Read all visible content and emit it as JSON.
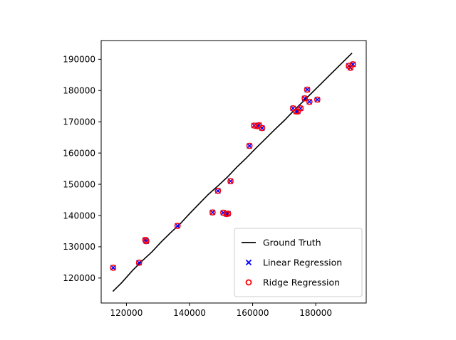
{
  "chart_data": {
    "type": "scatter",
    "title": "",
    "xlabel": "",
    "ylabel": "",
    "xlim": [
      112000,
      196000
    ],
    "ylim": [
      112000,
      196000
    ],
    "x_ticks": [
      120000,
      140000,
      160000,
      180000
    ],
    "y_ticks": [
      120000,
      130000,
      140000,
      150000,
      160000,
      170000,
      180000,
      190000
    ],
    "x_tick_labels": [
      "120000",
      "140000",
      "160000",
      "180000"
    ],
    "y_tick_labels": [
      "120000",
      "130000",
      "140000",
      "150000",
      "160000",
      "170000",
      "180000",
      "190000"
    ],
    "grid": false,
    "legend_position": "lower-right",
    "ground_truth_line": {
      "name": "Ground Truth",
      "color": "#000000",
      "points": [
        [
          115700,
          115700
        ],
        [
          118500,
          118500
        ],
        [
          122000,
          122500
        ],
        [
          125000,
          125500
        ],
        [
          128000,
          128300
        ],
        [
          131000,
          131500
        ],
        [
          134000,
          134500
        ],
        [
          137000,
          137300
        ],
        [
          140000,
          140600
        ],
        [
          143000,
          143700
        ],
        [
          146000,
          146800
        ],
        [
          149000,
          149500
        ],
        [
          152000,
          152300
        ],
        [
          155000,
          155500
        ],
        [
          158000,
          158400
        ],
        [
          161000,
          161500
        ],
        [
          164000,
          164500
        ],
        [
          167000,
          167500
        ],
        [
          170000,
          170400
        ],
        [
          173000,
          173500
        ],
        [
          176000,
          176500
        ],
        [
          179000,
          179500
        ],
        [
          182000,
          182500
        ],
        [
          185000,
          185500
        ],
        [
          188000,
          188500
        ],
        [
          191500,
          192000
        ]
      ]
    },
    "series": [
      {
        "name": "Linear Regression",
        "marker": "x",
        "color": "#0000ff",
        "points": [
          [
            115800,
            123300
          ],
          [
            124000,
            124900
          ],
          [
            126000,
            132200
          ],
          [
            126300,
            131800
          ],
          [
            136200,
            136700
          ],
          [
            147300,
            141000
          ],
          [
            149000,
            147900
          ],
          [
            150700,
            140900
          ],
          [
            151700,
            140500
          ],
          [
            152200,
            140600
          ],
          [
            153000,
            151000
          ],
          [
            159000,
            162300
          ],
          [
            160500,
            168800
          ],
          [
            161500,
            168600
          ],
          [
            162000,
            168900
          ],
          [
            163000,
            168000
          ],
          [
            172800,
            174300
          ],
          [
            173800,
            173300
          ],
          [
            174300,
            173300
          ],
          [
            175200,
            174300
          ],
          [
            176500,
            177500
          ],
          [
            177300,
            180300
          ],
          [
            178000,
            176400
          ],
          [
            180500,
            177100
          ],
          [
            190500,
            187900
          ],
          [
            191000,
            187300
          ],
          [
            191800,
            188400
          ]
        ]
      },
      {
        "name": "Ridge Regression",
        "marker": "o",
        "color": "#ff0000",
        "points": [
          [
            115800,
            123300
          ],
          [
            124000,
            124900
          ],
          [
            126000,
            132200
          ],
          [
            126300,
            131800
          ],
          [
            136200,
            136700
          ],
          [
            147300,
            141000
          ],
          [
            149000,
            147900
          ],
          [
            150700,
            140900
          ],
          [
            151700,
            140500
          ],
          [
            152200,
            140600
          ],
          [
            153000,
            151000
          ],
          [
            159000,
            162300
          ],
          [
            160500,
            168800
          ],
          [
            161500,
            168600
          ],
          [
            162000,
            168900
          ],
          [
            163000,
            168000
          ],
          [
            172800,
            174300
          ],
          [
            173800,
            173300
          ],
          [
            174300,
            173300
          ],
          [
            175200,
            174300
          ],
          [
            176500,
            177500
          ],
          [
            177300,
            180300
          ],
          [
            178000,
            176400
          ],
          [
            180500,
            177100
          ],
          [
            190500,
            187900
          ],
          [
            191000,
            187300
          ],
          [
            191800,
            188400
          ]
        ]
      }
    ]
  }
}
